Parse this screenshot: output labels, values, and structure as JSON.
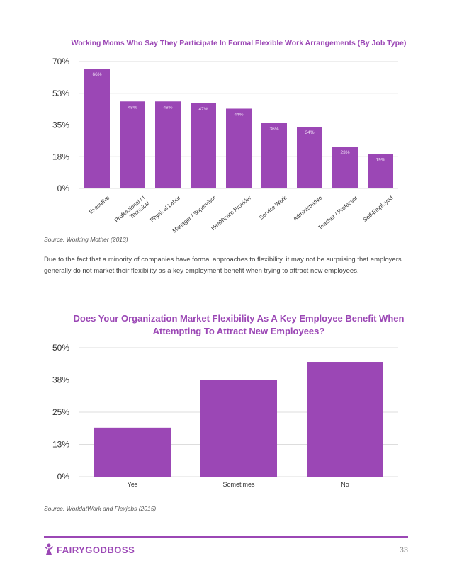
{
  "chart_data": [
    {
      "type": "bar",
      "title": "Working Moms Who Say They Participate In Formal Flexible Work Arrangements (By Job Type)",
      "categories": [
        "Executive",
        "Professional / I Technical",
        "Physical Labor",
        "Manager / Supervisor",
        "Healthcare Provider",
        "Service Work",
        "Administrative",
        "Teacher / Professor",
        "Self-Employed"
      ],
      "values": [
        66,
        48,
        48,
        47,
        44,
        36,
        34,
        23,
        19
      ],
      "value_labels": [
        "66%",
        "48%",
        "48%",
        "47%",
        "44%",
        "36%",
        "34%",
        "23%",
        "19%"
      ],
      "yticks": [
        "0%",
        "18%",
        "35%",
        "53%",
        "70%"
      ],
      "ylim": [
        0,
        70
      ],
      "grid": true,
      "color": "#9b47b5"
    },
    {
      "type": "bar",
      "title_lines": [
        "Does Your Organization Market Flexibility As A Key Employee Benefit When",
        "Attempting To Attract New Employees?"
      ],
      "categories": [
        "Yes",
        "Sometimes",
        "No"
      ],
      "values": [
        19,
        37.5,
        44.5
      ],
      "yticks": [
        "0%",
        "13%",
        "25%",
        "38%",
        "50%"
      ],
      "ylim": [
        0,
        50
      ],
      "grid": true,
      "color": "#9b47b5"
    }
  ],
  "source1": "Source: Working Mother (2013)",
  "paragraph": "Due to the fact that a minority of companies have formal approaches to flexibility, it may not be surprising that employers generally do not market their flexibility as a key employment benefit when trying to attract new employees.",
  "source2": "Source: WorldatWork and Flexjobs (2015)",
  "footer": {
    "logo_text": "FAIRYGODBOSS",
    "page_number": "33",
    "accent_color": "#9b47b5"
  }
}
